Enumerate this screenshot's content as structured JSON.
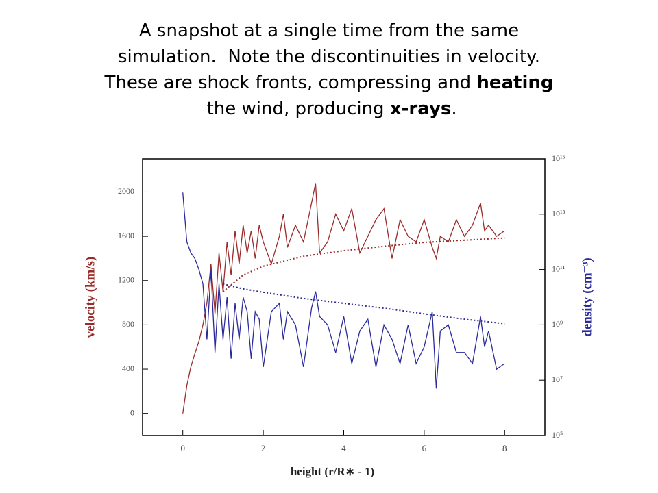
{
  "chart_data": {
    "type": "line",
    "title": [
      "A snapshot at a single time from the same",
      "simulation.  Note the discontinuities in velocity.",
      "These are shock fronts, compressing and ",
      "heating",
      " the wind, producing ",
      "x-rays",
      "."
    ],
    "xlabel": "height (r/R∗ - 1)",
    "ylabel": "velocity (km/s)",
    "y2label": "density (cm⁻³)",
    "x": [
      0,
      0.1,
      0.2,
      0.3,
      0.4,
      0.5,
      0.6,
      0.7,
      0.8,
      0.9,
      1.0,
      1.1,
      1.2,
      1.3,
      1.4,
      1.5,
      1.6,
      1.7,
      1.8,
      1.9,
      2.0,
      2.2,
      2.4,
      2.5,
      2.6,
      2.8,
      3.0,
      3.2,
      3.3,
      3.4,
      3.6,
      3.8,
      4.0,
      4.2,
      4.4,
      4.6,
      4.8,
      5.0,
      5.2,
      5.4,
      5.6,
      5.8,
      6.0,
      6.2,
      6.3,
      6.4,
      6.6,
      6.8,
      7.0,
      7.2,
      7.4,
      7.5,
      7.6,
      7.8,
      8.0
    ],
    "series": [
      {
        "color": "#9b2a2a",
        "style": "solid",
        "values": [
          0,
          250,
          420,
          540,
          650,
          800,
          1000,
          1350,
          900,
          1450,
          1100,
          1550,
          1250,
          1650,
          1350,
          1700,
          1450,
          1650,
          1400,
          1700,
          1550,
          1350,
          1600,
          1800,
          1500,
          1700,
          1550,
          1900,
          2080,
          1450,
          1550,
          1800,
          1650,
          1850,
          1450,
          1600,
          1750,
          1850,
          1400,
          1750,
          1600,
          1550,
          1750,
          1500,
          1400,
          1600,
          1550,
          1750,
          1600,
          1700,
          1900,
          1650,
          1700,
          1600,
          1650
        ]
      },
      {
        "color": "#2a2a9b",
        "style": "solid",
        "axis": "y2",
        "values": [
          60000000000000.0,
          1000000000000.0,
          400000000000.0,
          250000000000.0,
          100000000000.0,
          30000000000.0,
          300000000.0,
          100000000000.0,
          100000000.0,
          30000000000.0,
          300000000.0,
          10000000000.0,
          60000000.0,
          6000000000.0,
          300000000.0,
          10000000000.0,
          3000000000.0,
          60000000.0,
          3000000000.0,
          1600000000.0,
          30000000.0,
          3000000000.0,
          6000000000.0,
          300000000.0,
          3000000000.0,
          1000000000.0,
          30000000.0,
          4000000000.0,
          16000000000.0,
          2000000000.0,
          1000000000.0,
          100000000.0,
          2000000000.0,
          40000000.0,
          600000000.0,
          1600000000.0,
          30000000.0,
          1000000000.0,
          300000000.0,
          40000000.0,
          1000000000.0,
          40000000.0,
          160000000.0,
          3000000000.0,
          5000000.0,
          600000000.0,
          1000000000.0,
          100000000.0,
          100000000.0,
          40000000.0,
          2000000000.0,
          160000000.0,
          600000000.0,
          25000000.0,
          40000000.0
        ]
      },
      {
        "color": "#9b2a2a",
        "style": "dotted",
        "x": [
          1.0,
          1.5,
          2,
          3,
          4,
          5,
          6,
          7,
          8
        ],
        "values": [
          1100,
          1250,
          1330,
          1420,
          1470,
          1510,
          1545,
          1565,
          1585
        ]
      },
      {
        "color": "#2a2a9b",
        "style": "dotted",
        "axis": "y2",
        "x": [
          1.0,
          1.5,
          2,
          3,
          4,
          5,
          6,
          7,
          8
        ],
        "values": [
          30000000000.0,
          20000000000.0,
          15000000000.0,
          9000000000.0,
          6000000000.0,
          4000000000.0,
          2500000000.0,
          1600000000.0,
          1100000000.0
        ]
      }
    ],
    "xlim": [
      -1,
      9
    ],
    "xticks": [
      0,
      2,
      4,
      6,
      8
    ],
    "ylim": [
      -200,
      2300
    ],
    "yticks": [
      0,
      400,
      800,
      1200,
      1600,
      2000
    ],
    "y2lim": [
      100000.0,
      1000000000000000.0
    ],
    "y2scale": "log",
    "y2ticks": [
      {
        "value": 100000.0,
        "label": "10⁵"
      },
      {
        "value": 10000000.0,
        "label": "10⁷"
      },
      {
        "value": 1000000000.0,
        "label": "10⁹"
      },
      {
        "value": 100000000000.0,
        "label": "10¹¹"
      },
      {
        "value": 10000000000000.0,
        "label": "10¹³"
      },
      {
        "value": 1000000000000000.0,
        "label": "10¹⁵"
      }
    ]
  }
}
